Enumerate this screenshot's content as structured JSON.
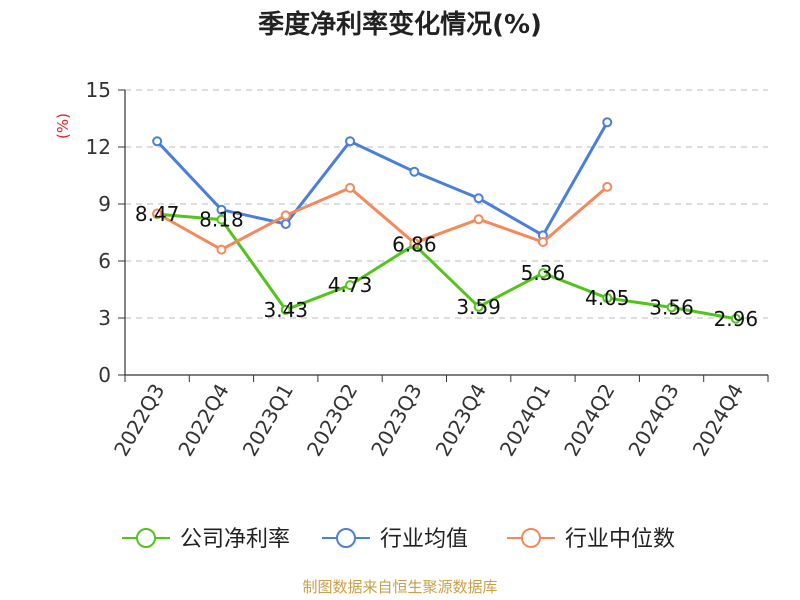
{
  "chart_data": {
    "type": "line",
    "title": "季度净利率变化情况(%)",
    "ylabel": "(%)",
    "ylim": [
      0,
      15
    ],
    "yticks": [
      0,
      3,
      6,
      9,
      12,
      15
    ],
    "grid": true,
    "legend_position": "bottom",
    "categories": [
      "2022Q3",
      "2022Q4",
      "2023Q1",
      "2023Q2",
      "2023Q3",
      "2023Q4",
      "2024Q1",
      "2024Q2",
      "2024Q3",
      "2024Q4"
    ],
    "series": [
      {
        "name": "公司净利率",
        "color": "#52c41a",
        "values": [
          8.47,
          8.18,
          3.43,
          4.73,
          6.86,
          3.59,
          5.36,
          4.05,
          3.56,
          2.96
        ],
        "labels": [
          "8.47",
          "8.18",
          "3.43",
          "4.73",
          "6.86",
          "3.59",
          "5.36",
          "4.05",
          "3.56",
          "2.96"
        ]
      },
      {
        "name": "行业均值",
        "color": "#4a7fdc",
        "values": [
          12.3,
          8.7,
          7.95,
          12.3,
          10.7,
          9.3,
          7.35,
          13.3,
          null,
          null
        ]
      },
      {
        "name": "行业中位数",
        "color": "#f4895b",
        "values": [
          8.5,
          6.6,
          8.4,
          9.85,
          6.95,
          8.2,
          7.0,
          9.9,
          null,
          null
        ]
      }
    ]
  },
  "source_text": "制图数据来自恒生聚源数据库"
}
